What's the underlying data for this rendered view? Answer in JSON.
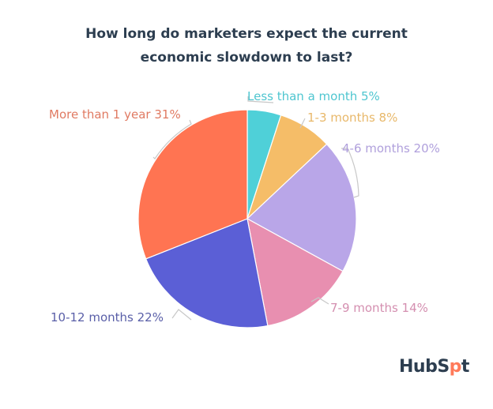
{
  "chart_data": {
    "type": "pie",
    "title": "How long do marketers expect the current economic slowdown to last?",
    "title_lines": [
      "How long do marketers expect the current",
      "economic slowdown to last?"
    ],
    "categories": [
      "Less than a month",
      "1-3 months",
      "4-6 months",
      "7-9 months",
      "10-12 months",
      "More than 1 year"
    ],
    "values": [
      5,
      8,
      20,
      14,
      22,
      31
    ],
    "unit": "%",
    "colors": [
      "#4fd0d8",
      "#f5bd68",
      "#b9a6e8",
      "#e88fb0",
      "#5b5fd6",
      "#ff7452"
    ],
    "label_colors": [
      "#4fc6d0",
      "#e8b86a",
      "#b0a0dc",
      "#d48fb0",
      "#5a5fa8",
      "#e07a62"
    ],
    "labels": [
      "Less than a month 5%",
      "1-3 months 8%",
      "4-6 months 20%",
      "7-9 months 14%",
      "10-12 months 22%",
      "More than 1 year 31%"
    ],
    "start_angle_deg": 0,
    "direction": "clockwise",
    "legend": "none (direct labels)"
  },
  "branding": {
    "logo_prefix": "HubS",
    "logo_spot": "p",
    "logo_suffix": "t"
  }
}
